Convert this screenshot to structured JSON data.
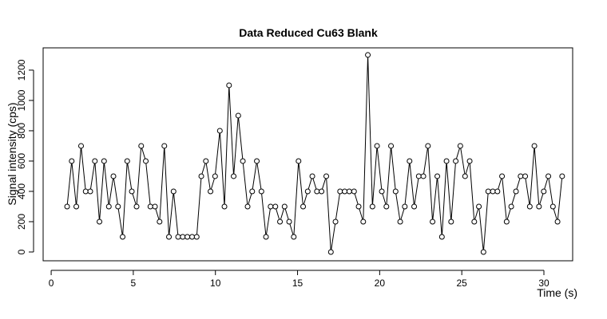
{
  "chart_data": {
    "type": "line",
    "title": "Data Reduced Cu63 Blank",
    "x_label": "Time (s)",
    "y_label": "Signal intensity (cps)",
    "color": "#000000",
    "markers": true,
    "xlim": [
      -0.49,
      31.75
    ],
    "ylim": [
      -58,
      1347
    ],
    "xticks": [
      0,
      5,
      10,
      15,
      20,
      25,
      30
    ],
    "yticks": [
      0,
      200,
      400,
      600,
      800,
      1000,
      1200
    ],
    "x": [
      0.97,
      1.25,
      1.53,
      1.82,
      2.1,
      2.38,
      2.66,
      2.94,
      3.22,
      3.51,
      3.79,
      4.07,
      4.35,
      4.63,
      4.91,
      5.2,
      5.48,
      5.76,
      6.04,
      6.32,
      6.6,
      6.89,
      7.17,
      7.45,
      7.73,
      8.01,
      8.29,
      8.58,
      8.86,
      9.14,
      9.42,
      9.7,
      9.98,
      10.27,
      10.55,
      10.83,
      11.11,
      11.39,
      11.67,
      11.96,
      12.24,
      12.52,
      12.8,
      13.08,
      13.36,
      13.65,
      13.93,
      14.21,
      14.49,
      14.77,
      15.06,
      15.34,
      15.62,
      15.9,
      16.18,
      16.46,
      16.75,
      17.03,
      17.31,
      17.59,
      17.87,
      18.15,
      18.44,
      18.72,
      19.0,
      19.28,
      19.56,
      19.84,
      20.13,
      20.41,
      20.69,
      20.97,
      21.25,
      21.53,
      21.82,
      22.1,
      22.38,
      22.66,
      22.94,
      23.22,
      23.51,
      23.79,
      24.07,
      24.35,
      24.63,
      24.91,
      25.2,
      25.48,
      25.76,
      26.04,
      26.32,
      26.61,
      26.89,
      27.17,
      27.45,
      27.73,
      28.01,
      28.3,
      28.58,
      28.86,
      29.14,
      29.42,
      29.7,
      29.99,
      30.27,
      30.55,
      30.83,
      31.11
    ],
    "values": [
      300,
      600,
      300,
      700,
      400,
      400,
      600,
      200,
      600,
      300,
      500,
      300,
      100,
      600,
      400,
      300,
      700,
      600,
      300,
      300,
      200,
      700,
      100,
      400,
      100,
      100,
      100,
      100,
      100,
      500,
      600,
      400,
      500,
      800,
      300,
      1100,
      500,
      900,
      600,
      300,
      400,
      600,
      400,
      100,
      300,
      300,
      200,
      300,
      200,
      100,
      600,
      300,
      400,
      500,
      400,
      400,
      500,
      0,
      200,
      400,
      400,
      400,
      400,
      300,
      200,
      1300,
      300,
      700,
      400,
      300,
      700,
      400,
      200,
      300,
      600,
      300,
      500,
      500,
      700,
      200,
      500,
      100,
      600,
      200,
      600,
      700,
      500,
      600,
      200,
      300,
      0,
      400,
      400,
      400,
      500,
      200,
      300,
      400,
      500,
      500,
      300,
      700,
      300,
      400,
      500,
      300,
      200,
      500
    ]
  }
}
